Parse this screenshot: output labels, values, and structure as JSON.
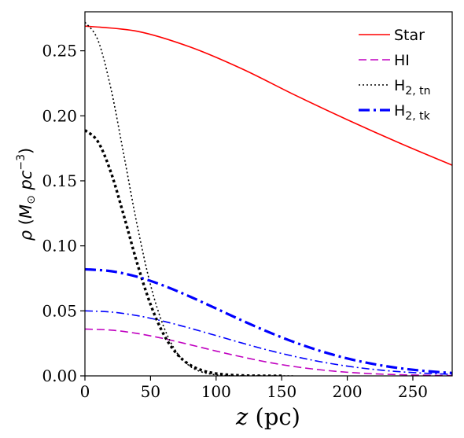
{
  "chart_data": {
    "type": "line",
    "xlabel": "z (pc)",
    "ylabel": "ρ (M⊙ pc⁻³)",
    "xlim": [
      0,
      280
    ],
    "ylim": [
      0,
      0.28
    ],
    "xticks": [
      0,
      50,
      100,
      150,
      200,
      250
    ],
    "xtick_labels": [
      "0",
      "50",
      "100",
      "150",
      "200",
      "250"
    ],
    "yticks": [
      0.0,
      0.05,
      0.1,
      0.15,
      0.2,
      0.25
    ],
    "ytick_labels": [
      "0.00",
      "0.05",
      "0.10",
      "0.15",
      "0.20",
      "0.25"
    ],
    "grid": false,
    "legend_position": "top-right",
    "series": [
      {
        "name": "Star",
        "legend_main": "Star",
        "legend_sub": "",
        "color": "#ff0000",
        "style": "solid",
        "x": [
          0,
          40,
          80,
          120,
          160,
          200,
          240,
          280
        ],
        "y": [
          0.269,
          0.265,
          0.253,
          0.236,
          0.216,
          0.197,
          0.179,
          0.162
        ]
      },
      {
        "name": "HI",
        "legend_main": "HI",
        "legend_sub": "",
        "color": "#c000c0",
        "style": "dashed",
        "x": [
          0,
          20,
          40,
          60,
          80,
          100,
          120,
          140,
          160,
          180,
          200,
          220,
          240,
          260,
          280
        ],
        "y": [
          0.036,
          0.0352,
          0.0326,
          0.0287,
          0.024,
          0.0191,
          0.0145,
          0.0104,
          0.0071,
          0.0046,
          0.0028,
          0.0016,
          0.0009,
          0.0005,
          0.0002
        ]
      },
      {
        "name": "H2,tn",
        "legend_main": "H",
        "legend_sub": "2, tn",
        "color": "#000000",
        "style": "dotted-thin",
        "x": [
          0,
          10,
          20,
          30,
          40,
          50,
          60,
          70,
          80,
          90,
          100,
          110,
          120,
          140,
          160
        ],
        "y": [
          0.272,
          0.258,
          0.22,
          0.168,
          0.115,
          0.07,
          0.038,
          0.018,
          0.0075,
          0.0027,
          0.0008,
          0.0002,
          0.0,
          0.0,
          0.0
        ]
      },
      {
        "name": "H2,tn (thick)",
        "legend_main": "",
        "legend_sub": "",
        "color": "#000000",
        "style": "dotted-thick",
        "x": [
          0,
          10,
          20,
          30,
          40,
          50,
          60,
          70,
          80,
          90,
          100,
          110,
          120,
          130,
          140,
          150
        ],
        "y": [
          0.189,
          0.18,
          0.156,
          0.122,
          0.086,
          0.055,
          0.032,
          0.017,
          0.0085,
          0.004,
          0.0018,
          0.0008,
          0.0003,
          0.0001,
          0.0,
          0.0
        ]
      },
      {
        "name": "H2,tk",
        "legend_main": "H",
        "legend_sub": "2, tk",
        "color": "#0000ff",
        "style": "dashdot-thick",
        "x": [
          0,
          20,
          40,
          60,
          80,
          100,
          120,
          140,
          160,
          180,
          200,
          220,
          240,
          260,
          280
        ],
        "y": [
          0.082,
          0.0805,
          0.0762,
          0.0694,
          0.061,
          0.0518,
          0.0425,
          0.0337,
          0.0258,
          0.019,
          0.0134,
          0.0091,
          0.0059,
          0.0037,
          0.0022
        ]
      },
      {
        "name": "H2,tk (thin)",
        "legend_main": "",
        "legend_sub": "",
        "color": "#0000ff",
        "style": "dashdot-thin",
        "x": [
          0,
          20,
          40,
          60,
          80,
          100,
          120,
          140,
          160,
          180,
          200,
          220,
          240,
          260,
          280
        ],
        "y": [
          0.05,
          0.0491,
          0.0463,
          0.042,
          0.0367,
          0.031,
          0.0252,
          0.0197,
          0.0149,
          0.0108,
          0.0075,
          0.005,
          0.0032,
          0.002,
          0.0012
        ]
      }
    ]
  }
}
